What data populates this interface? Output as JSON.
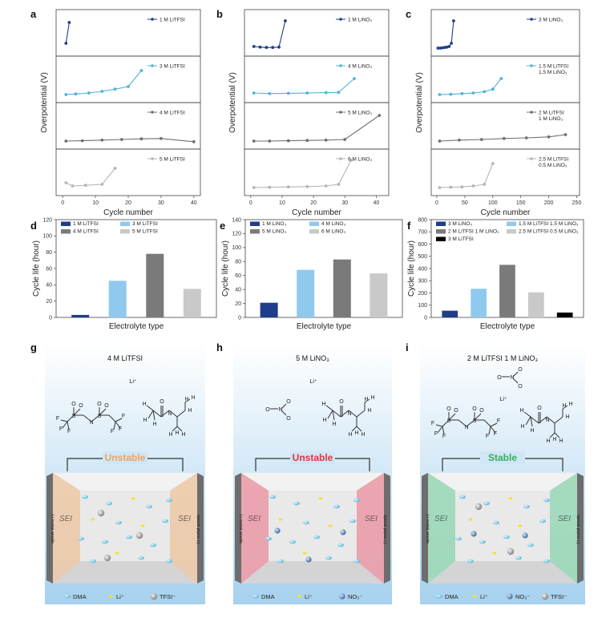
{
  "figure": {
    "panel_letters": [
      "a",
      "b",
      "c",
      "d",
      "e",
      "f",
      "g",
      "h",
      "i"
    ],
    "overpotential_axis_label": "Overpotential (V)",
    "cycle_number_label": "Cycle number",
    "cycle_life_label": "Cycle life (hour)",
    "electrolyte_type_label": "Electrolyte type"
  },
  "chart_data": [
    {
      "panel": "a",
      "type": "line",
      "xlabel": "Cycle number",
      "ylabel": "Overpotential (V)",
      "xlim": [
        -2,
        42
      ],
      "xticks": [
        "0",
        "10",
        "20",
        "30",
        "40"
      ],
      "series": [
        {
          "name": "1 M LiTFSI",
          "color": "#1f3d8a",
          "x": [
            1,
            2
          ],
          "y": [
            0.2,
            0.85
          ]
        },
        {
          "name": "3 M LiTFSI",
          "color": "#4fb3d9",
          "x": [
            1,
            4,
            8,
            12,
            16,
            20,
            24
          ],
          "y": [
            0.05,
            0.07,
            0.1,
            0.15,
            0.22,
            0.3,
            0.8
          ]
        },
        {
          "name": "4 M LiTFSI",
          "color": "#707070",
          "x": [
            1,
            6,
            12,
            18,
            24,
            30,
            40
          ],
          "y": [
            0.05,
            0.06,
            0.08,
            0.1,
            0.12,
            0.13,
            0.03
          ]
        },
        {
          "name": "5 M LiTFSI",
          "color": "#b5b5b5",
          "x": [
            1,
            3,
            7,
            12,
            16
          ],
          "y": [
            0.2,
            0.1,
            0.12,
            0.15,
            0.65
          ]
        }
      ]
    },
    {
      "panel": "b",
      "type": "line",
      "xlabel": "Cycle number",
      "ylabel": "Overpotential (V)",
      "xlim": [
        -2,
        44
      ],
      "xticks": [
        "0",
        "10",
        "20",
        "30",
        "40"
      ],
      "series": [
        {
          "name": "1 M LiNO3",
          "color": "#1f3d8a",
          "x": [
            1,
            3,
            5,
            7,
            9,
            11
          ],
          "y": [
            0.1,
            0.08,
            0.07,
            0.07,
            0.08,
            0.9
          ]
        },
        {
          "name": "4 M LiNO3",
          "color": "#4fb3d9",
          "x": [
            1,
            6,
            12,
            18,
            24,
            28,
            33
          ],
          "y": [
            0.1,
            0.08,
            0.09,
            0.1,
            0.11,
            0.12,
            0.55
          ]
        },
        {
          "name": "5 M LiNO3",
          "color": "#707070",
          "x": [
            1,
            6,
            12,
            18,
            24,
            30,
            41
          ],
          "y": [
            0.05,
            0.05,
            0.06,
            0.07,
            0.08,
            0.1,
            0.85
          ]
        },
        {
          "name": "6 M LiNO3",
          "color": "#b5b5b5",
          "x": [
            1,
            6,
            12,
            18,
            24,
            28,
            32
          ],
          "y": [
            0.05,
            0.06,
            0.07,
            0.08,
            0.1,
            0.15,
            0.9
          ]
        }
      ]
    },
    {
      "panel": "c",
      "type": "line",
      "xlabel": "Cycle number",
      "ylabel": "Overpotential (V)",
      "xlim": [
        -10,
        255
      ],
      "xticks": [
        "0",
        "50",
        "100",
        "150",
        "200",
        "250"
      ],
      "series": [
        {
          "name": "3 M LiNO3",
          "color": "#1f3d8a",
          "x": [
            2,
            6,
            10,
            14,
            18,
            22,
            26,
            30
          ],
          "y": [
            0.05,
            0.05,
            0.06,
            0.07,
            0.08,
            0.1,
            0.2,
            0.9
          ]
        },
        {
          "name": "1.5 M LiTFSI 1.5 M LiNO3",
          "color": "#4fb3d9",
          "x": [
            5,
            25,
            45,
            65,
            85,
            100,
            115
          ],
          "y": [
            0.05,
            0.06,
            0.08,
            0.1,
            0.14,
            0.22,
            0.55
          ]
        },
        {
          "name": "2 M LiTFSI 1 M LiNO3",
          "color": "#707070",
          "x": [
            5,
            40,
            80,
            120,
            160,
            200,
            230
          ],
          "y": [
            0.05,
            0.08,
            0.1,
            0.13,
            0.15,
            0.18,
            0.25
          ]
        },
        {
          "name": "2.5 M LiTFSI 0.5 M LiNO3",
          "color": "#b5b5b5",
          "x": [
            5,
            25,
            45,
            65,
            85,
            100
          ],
          "y": [
            0.05,
            0.06,
            0.07,
            0.1,
            0.15,
            0.8
          ]
        }
      ]
    },
    {
      "panel": "d",
      "type": "bar",
      "xlabel": "Electrolyte type",
      "ylabel": "Cycle life (hour)",
      "ylim": [
        0,
        120
      ],
      "yticks": [
        "0",
        "20",
        "40",
        "60",
        "80",
        "100",
        "120"
      ],
      "categories": [
        "1 M LiTFSI",
        "3 M LiTFSI",
        "4 M LiTFSI",
        "5 M LiTFSI"
      ],
      "values": [
        3,
        45,
        78,
        35
      ],
      "colors": [
        "#1f3d8a",
        "#8fcaee",
        "#7a7a7a",
        "#c9c9c9"
      ]
    },
    {
      "panel": "e",
      "type": "bar",
      "xlabel": "Electrolyte type",
      "ylabel": "Cycle life (hour)",
      "ylim": [
        0,
        140
      ],
      "yticks": [
        "0",
        "20",
        "40",
        "60",
        "80",
        "100",
        "120",
        "140"
      ],
      "categories": [
        "1 M LiNO3",
        "4 M LiNO3",
        "5 M LiNO3",
        "6 M LiNO3"
      ],
      "legend_labels": [
        "1 M LiNO₃",
        "4 M LiNO₃",
        "5 M LiNO₃",
        "6 M LiNO₃"
      ],
      "values": [
        21,
        68,
        83,
        63
      ],
      "colors": [
        "#1f3d8a",
        "#8fcaee",
        "#7a7a7a",
        "#c9c9c9"
      ]
    },
    {
      "panel": "f",
      "type": "bar",
      "xlabel": "Electrolyte type",
      "ylabel": "Cycle life (hour)",
      "ylim": [
        0,
        800
      ],
      "yticks": [
        "0",
        "100",
        "200",
        "300",
        "400",
        "500",
        "600",
        "700",
        "800"
      ],
      "categories": [
        "3 M LiNO3",
        "1.5 M LiTFSI 1.5 M LiNO3",
        "2 M LiTFSI 1 M LiNO3",
        "2.5 M LiTFSI 0.5 M LiNO3",
        "3 M LiTFSI"
      ],
      "legend_labels": [
        "3 M LiNO₃",
        "1.5 M LiTFSI 1.5 M LiNO₃",
        "2 M LiTFSI 1 M LiNO₃",
        "2.5 M LiTFSI 0.5 M LiNO₃",
        "3 M LiTFSI"
      ],
      "values": [
        55,
        235,
        430,
        205,
        40
      ],
      "colors": [
        "#1f3d8a",
        "#8fcaee",
        "#7a7a7a",
        "#c9c9c9",
        "#000000"
      ]
    }
  ],
  "schematics": [
    {
      "panel": "g",
      "title": "4 M LiTFSI",
      "li_label": "Li⁺",
      "status": "Unstable",
      "status_color": "#f0a35a",
      "wall_color": "#f3c9a3",
      "sei_label": "SEI",
      "electrode_label": "Li metal anode",
      "legend": [
        "DMA",
        "Li⁺",
        "TFSI⁻"
      ]
    },
    {
      "panel": "h",
      "title": "5 M LiNO₃",
      "li_label": "Li⁺",
      "status": "Unstable",
      "status_color": "#e8323c",
      "wall_color": "#f19aa3",
      "sei_label": "SEI",
      "electrode_label": "Li metal anode",
      "legend": [
        "DMA",
        "Li⁺",
        "NO₃⁻"
      ]
    },
    {
      "panel": "i",
      "title": "2 M LiTFSI 1 M LiNO₃",
      "li_label": "Li⁺",
      "status": "Stable",
      "status_color": "#34b05a",
      "wall_color": "#9ed8b3",
      "sei_label": "SEI",
      "electrode_label": "Li metal anode",
      "legend": [
        "DMA",
        "Li⁺",
        "NO₃⁻",
        "TFSI⁻"
      ]
    }
  ],
  "molecule_labels": {
    "tfsi_atoms": [
      "O",
      "O",
      "O",
      "O",
      "N",
      "S",
      "S",
      "F",
      "F",
      "F",
      "F",
      "F",
      "F"
    ],
    "dma_atoms": [
      "O",
      "N",
      "H",
      "H",
      "H",
      "H",
      "H",
      "H",
      "H",
      "H",
      "H"
    ],
    "nitrate_atoms": [
      "O",
      "N",
      "O",
      "O"
    ]
  },
  "colors": {
    "dma": "#4fb3d9",
    "li": "#f2e23a",
    "tfsi": "#9a9a9a",
    "no3": "#3a6ea8",
    "background_top": "#ffffff",
    "background_bottom": "#a6d1ee"
  }
}
